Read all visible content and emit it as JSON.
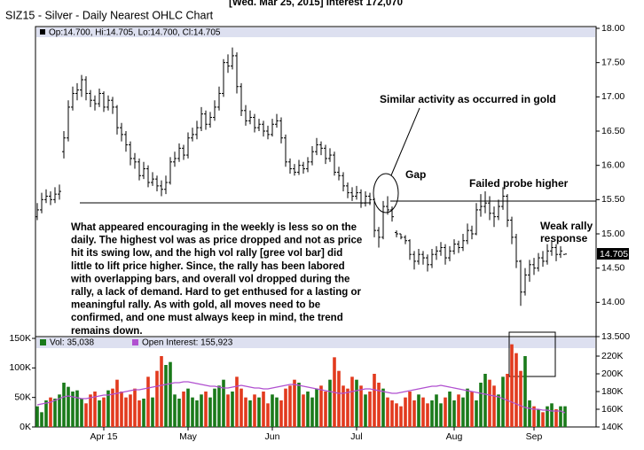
{
  "chart_data": [
    {
      "type": "ohlc",
      "header": "[Wed. Mar 25, 2015] Interest 172,070",
      "title": "SIZ15 - Silver - Daily Nearest OHLC Chart",
      "info": "Op:14.700, Hi:14.705, Lo:14.700, Cl:14.705",
      "color": "#000000",
      "open": [
        15.25,
        15.35,
        15.5,
        15.55,
        15.5,
        15.58,
        16.2,
        16.4,
        16.85,
        17.05,
        17.1,
        17.25,
        17.05,
        16.95,
        16.9,
        17.05,
        16.85,
        16.95,
        16.85,
        16.55,
        16.45,
        16.3,
        16.1,
        16.05,
        15.85,
        15.95,
        15.75,
        15.8,
        15.7,
        15.65,
        15.75,
        16.05,
        16.1,
        16.25,
        16.15,
        16.4,
        16.45,
        16.55,
        16.75,
        16.6,
        16.7,
        16.85,
        17.05,
        17.5,
        17.45,
        17.6,
        17.15,
        16.8,
        16.65,
        16.7,
        16.55,
        16.6,
        16.5,
        16.45,
        16.6,
        16.65,
        16.4,
        16.05,
        15.95,
        15.9,
        16.0,
        15.95,
        16.05,
        16.2,
        16.3,
        16.25,
        16.1,
        16.15,
        15.9,
        15.85,
        15.7,
        15.6,
        15.55,
        15.6,
        15.45,
        15.55,
        15.5,
        15.05,
        14.95,
        15.4,
        15.35,
        15.02,
        15.0,
        14.95,
        14.9,
        14.7,
        14.6,
        14.7,
        14.65,
        14.55,
        14.7,
        14.75,
        14.8,
        14.65,
        14.75,
        14.85,
        14.8,
        14.9,
        15.05,
        15.0,
        15.35,
        15.4,
        15.45,
        15.3,
        15.25,
        15.4,
        15.55,
        15.2,
        14.95,
        14.6,
        14.15,
        14.4,
        14.55,
        14.5,
        14.65,
        14.6,
        14.75,
        14.8,
        14.7,
        14.7
      ],
      "high": [
        15.45,
        15.6,
        15.65,
        15.62,
        15.68,
        15.72,
        16.5,
        16.95,
        17.15,
        17.2,
        17.32,
        17.3,
        17.1,
        17.02,
        17.12,
        17.08,
        17.02,
        17.0,
        16.88,
        16.62,
        16.5,
        16.35,
        16.18,
        16.1,
        16.05,
        16.0,
        15.9,
        15.85,
        15.78,
        15.85,
        16.12,
        16.2,
        16.32,
        16.3,
        16.48,
        16.55,
        16.65,
        16.85,
        16.8,
        16.78,
        16.95,
        17.15,
        17.55,
        17.62,
        17.72,
        17.65,
        17.2,
        16.88,
        16.8,
        16.75,
        16.68,
        16.65,
        16.58,
        16.68,
        16.75,
        16.7,
        16.45,
        16.1,
        16.02,
        16.08,
        16.05,
        16.12,
        16.28,
        16.4,
        16.35,
        16.3,
        16.25,
        16.2,
        15.98,
        15.9,
        15.75,
        15.68,
        15.7,
        15.65,
        15.62,
        15.6,
        15.52,
        15.1,
        15.48,
        15.55,
        15.4,
        15.05,
        15.0,
        14.98,
        14.92,
        14.75,
        14.78,
        14.75,
        14.7,
        14.78,
        14.82,
        14.88,
        14.85,
        14.82,
        14.92,
        14.9,
        15.0,
        15.15,
        15.12,
        15.45,
        15.58,
        15.62,
        15.55,
        15.4,
        15.5,
        15.68,
        15.58,
        15.25,
        15.0,
        14.62,
        14.5,
        14.62,
        14.65,
        14.72,
        14.75,
        14.85,
        14.9,
        14.85,
        14.82,
        14.705
      ],
      "low": [
        15.2,
        15.3,
        15.45,
        15.42,
        15.45,
        15.5,
        16.1,
        16.35,
        16.8,
        16.95,
        17.0,
        16.95,
        16.85,
        16.8,
        16.85,
        16.78,
        16.8,
        16.75,
        16.45,
        16.35,
        16.2,
        16.0,
        15.95,
        15.78,
        15.8,
        15.68,
        15.7,
        15.62,
        15.55,
        15.58,
        15.72,
        15.98,
        16.05,
        16.08,
        16.1,
        16.35,
        16.38,
        16.5,
        16.52,
        16.55,
        16.65,
        16.8,
        17.0,
        17.35,
        17.4,
        17.05,
        16.72,
        16.58,
        16.6,
        16.48,
        16.5,
        16.42,
        16.38,
        16.42,
        16.55,
        16.32,
        15.98,
        15.88,
        15.85,
        15.86,
        15.88,
        15.9,
        16.0,
        16.15,
        16.15,
        16.02,
        16.05,
        15.85,
        15.78,
        15.62,
        15.52,
        15.48,
        15.5,
        15.38,
        15.4,
        15.42,
        14.95,
        14.8,
        14.92,
        15.28,
        15.18,
        14.95,
        14.92,
        14.85,
        14.62,
        14.48,
        14.55,
        14.55,
        14.45,
        14.5,
        14.62,
        14.68,
        14.55,
        14.6,
        14.7,
        14.72,
        14.75,
        14.85,
        14.92,
        14.98,
        15.25,
        15.3,
        15.2,
        15.1,
        15.2,
        15.35,
        15.1,
        14.85,
        14.5,
        13.95,
        14.1,
        14.3,
        14.4,
        14.45,
        14.52,
        14.55,
        14.68,
        14.6,
        14.65,
        14.7
      ],
      "close": [
        15.35,
        15.5,
        15.55,
        15.5,
        15.58,
        15.62,
        16.4,
        16.85,
        17.05,
        17.1,
        17.25,
        17.05,
        16.95,
        16.9,
        17.05,
        16.85,
        16.95,
        16.85,
        16.55,
        16.45,
        16.3,
        16.1,
        16.05,
        15.85,
        15.95,
        15.75,
        15.8,
        15.7,
        15.65,
        15.75,
        16.05,
        16.1,
        16.25,
        16.15,
        16.4,
        16.45,
        16.55,
        16.75,
        16.6,
        16.7,
        16.85,
        17.05,
        17.5,
        17.45,
        17.6,
        17.15,
        16.8,
        16.65,
        16.7,
        16.55,
        16.6,
        16.5,
        16.45,
        16.6,
        16.65,
        16.4,
        16.05,
        15.95,
        15.9,
        16.0,
        15.95,
        16.05,
        16.2,
        16.3,
        16.25,
        16.1,
        16.15,
        15.9,
        15.85,
        15.7,
        15.6,
        15.55,
        15.6,
        15.45,
        15.55,
        15.5,
        15.05,
        14.95,
        15.4,
        15.35,
        15.25,
        15.0,
        14.95,
        14.9,
        14.7,
        14.6,
        14.7,
        14.65,
        14.55,
        14.7,
        14.75,
        14.8,
        14.65,
        14.75,
        14.85,
        14.8,
        14.9,
        15.05,
        15.0,
        15.35,
        15.4,
        15.45,
        15.3,
        15.25,
        15.4,
        15.55,
        15.2,
        14.95,
        14.6,
        14.15,
        14.4,
        14.55,
        14.5,
        14.65,
        14.6,
        14.75,
        14.8,
        14.7,
        14.75,
        14.705
      ],
      "ylim": [
        13.5,
        18
      ],
      "yticks": [
        {
          "value": 18,
          "label": "18.00"
        },
        {
          "value": 17.5,
          "label": "17.50"
        },
        {
          "value": 17,
          "label": "17.00"
        },
        {
          "value": 16.5,
          "label": "16.50"
        },
        {
          "value": 16,
          "label": "16.00"
        },
        {
          "value": 15.5,
          "label": "15.50"
        },
        {
          "value": 15,
          "label": "15.00"
        },
        {
          "value": 14.5,
          "label": "14.50"
        },
        {
          "value": 14,
          "label": "14.00"
        },
        {
          "value": 13.5,
          "label": "13.500"
        }
      ],
      "annotations": [
        "Similar activity as occurred in gold",
        "Gap",
        "Failed probe higher",
        "Weak rally",
        "response"
      ],
      "text_block": [
        "What appeared encouraging in the weekly is less so on the",
        "daily.  The highest vol was as price dropped and not as price",
        "hit its swing low, and the high vol rally [gree vol bar] did",
        "little to lift price higher.  Since, the rally has been labored",
        "with overlapping bars, and overall vol dropped during the",
        "rally, a lack of demand.  Hard to get enthused for a lasting or",
        "meaningful rally.  As with gold, all moves need to be",
        "confirmed, and one must always keep in mind, the trend",
        "remains down."
      ]
    },
    {
      "type": "bar",
      "categories": [
        null,
        null,
        null,
        null,
        null,
        null,
        null,
        null,
        null,
        null,
        null,
        null,
        null,
        null,
        null,
        "Apr 15",
        null,
        null,
        null,
        null,
        null,
        null,
        null,
        null,
        null,
        null,
        null,
        null,
        null,
        null,
        null,
        null,
        null,
        null,
        "May",
        null,
        null,
        null,
        null,
        null,
        null,
        null,
        null,
        null,
        null,
        null,
        null,
        null,
        null,
        null,
        null,
        null,
        null,
        "Jun",
        null,
        null,
        null,
        null,
        null,
        null,
        null,
        null,
        null,
        null,
        null,
        null,
        null,
        null,
        null,
        null,
        null,
        null,
        "Jul",
        null,
        null,
        null,
        null,
        null,
        null,
        null,
        null,
        null,
        null,
        null,
        null,
        null,
        null,
        null,
        null,
        null,
        null,
        null,
        null,
        null,
        "Aug",
        null,
        null,
        null,
        null,
        null,
        null,
        null,
        null,
        null,
        null,
        null,
        null,
        null,
        null,
        null,
        null,
        null,
        "Sep",
        null,
        null,
        null,
        null,
        null,
        null,
        null
      ],
      "series": [
        {
          "name": "Vol: 35,038",
          "color": "#1a7a1a",
          "up_color": "#1a7a1a",
          "down_color": "#e23a1e",
          "values": [
            35000,
            25000,
            45000,
            50000,
            48000,
            55000,
            75000,
            68000,
            60000,
            62000,
            48000,
            40000,
            55000,
            60000,
            45000,
            50000,
            62000,
            65000,
            80000,
            60000,
            50000,
            55000,
            65000,
            45000,
            48000,
            85000,
            50000,
            95000,
            120000,
            105000,
            110000,
            55000,
            48000,
            60000,
            65000,
            50000,
            45000,
            55000,
            60000,
            50000,
            65000,
            70000,
            80000,
            55000,
            60000,
            85000,
            65000,
            50000,
            45000,
            55000,
            50000,
            60000,
            40000,
            55000,
            50000,
            45000,
            65000,
            70000,
            80000,
            75000,
            55000,
            60000,
            50000,
            65000,
            70000,
            60000,
            80000,
            118000,
            95000,
            70000,
            65000,
            85000,
            80000,
            70000,
            55000,
            60000,
            90000,
            75000,
            65000,
            50000,
            45000,
            40000,
            35000,
            50000,
            60000,
            45000,
            55000,
            50000,
            40000,
            45000,
            55000,
            40000,
            50000,
            60000,
            45000,
            55000,
            50000,
            65000,
            60000,
            45000,
            75000,
            90000,
            80000,
            70000,
            55000,
            85000,
            90000,
            140000,
            125000,
            95000,
            120000,
            45000,
            35000,
            30000,
            25000,
            35000,
            40000,
            30000,
            35000,
            35038
          ]
        },
        {
          "name": "Open Interest: 155,923",
          "color": "#b050d0",
          "axis": "y2",
          "values": [
            165000,
            166000,
            167000,
            168000,
            170000,
            172000,
            174000,
            175000,
            174000,
            173000,
            172000,
            172000,
            173000,
            174000,
            175000,
            176000,
            176000,
            177000,
            178000,
            179000,
            180000,
            181000,
            182000,
            182000,
            183000,
            184000,
            185000,
            186000,
            187000,
            188000,
            189000,
            190000,
            190000,
            191000,
            191000,
            190000,
            189000,
            188000,
            187000,
            186000,
            186000,
            185000,
            184000,
            184000,
            185000,
            186000,
            187000,
            186000,
            185000,
            184000,
            184000,
            183000,
            183000,
            184000,
            185000,
            186000,
            187000,
            188000,
            188000,
            187000,
            186000,
            185000,
            184000,
            183000,
            182000,
            181000,
            180000,
            179000,
            178000,
            178000,
            179000,
            180000,
            181000,
            182000,
            183000,
            183000,
            182000,
            181000,
            180000,
            179000,
            178000,
            178000,
            179000,
            180000,
            181000,
            182000,
            183000,
            184000,
            185000,
            186000,
            186000,
            187000,
            186000,
            185000,
            184000,
            183000,
            182000,
            181000,
            180000,
            179000,
            178000,
            177000,
            176000,
            175000,
            174000,
            172000,
            170000,
            168000,
            166000,
            164000,
            162000,
            161000,
            160000,
            160000,
            159000,
            159000,
            158000,
            158000,
            158000,
            155923
          ]
        }
      ],
      "ylim": [
        0,
        150000
      ],
      "yticks": [
        {
          "value": 150000,
          "label": "150K"
        },
        {
          "value": 100000,
          "label": "100K"
        },
        {
          "value": 50000,
          "label": "50K"
        },
        {
          "value": 0,
          "label": "0K"
        }
      ],
      "y2lim": [
        140000,
        240000
      ],
      "y2ticks": [
        {
          "value": 220000,
          "label": "220K"
        },
        {
          "value": 200000,
          "label": "200K"
        },
        {
          "value": 180000,
          "label": "180K"
        },
        {
          "value": 160000,
          "label": "160K"
        },
        {
          "value": 140000,
          "label": "140K"
        }
      ]
    }
  ]
}
